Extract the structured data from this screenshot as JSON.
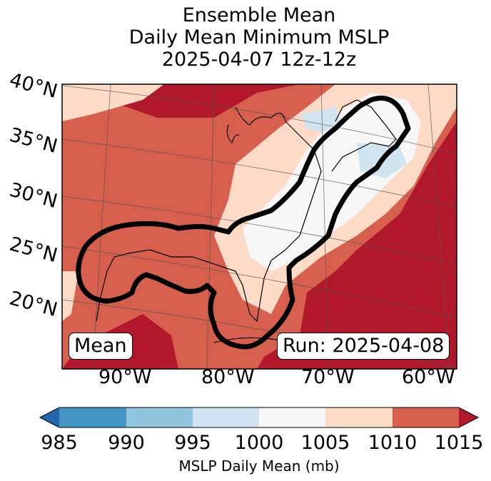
{
  "title_lines": [
    "Ensemble Mean",
    "Daily Mean Minimum MSLP",
    "2025-04-07 12z-12z"
  ],
  "lat_labels": [
    "40°N",
    "35°N",
    "30°N",
    "25°N",
    "20°N"
  ],
  "lon_labels": [
    "90°W",
    "80°W",
    "70°W",
    "60°W"
  ],
  "mean_label": "Mean",
  "run_label": "Run: 2025-04-08",
  "colorbar": {
    "ticks": [
      "985",
      "990",
      "995",
      "1000",
      "1005",
      "1010",
      "1015"
    ],
    "label": "MSLP Daily Mean (mb)",
    "colors": [
      "#2166ac",
      "#4393c3",
      "#92c5de",
      "#d1e5f0",
      "#f7f7f7",
      "#fddbc7",
      "#d6604d",
      "#b2182b"
    ]
  },
  "legend_colors": {
    "under": "#2166ac",
    "985_990": "#4393c3",
    "990_995": "#92c5de",
    "995_1000": "#d1e5f0",
    "1000_1005": "#f7f7f7",
    "1005_1010": "#fddbc7",
    "1010_1015": "#d6604d",
    "over": "#b2182b"
  }
}
